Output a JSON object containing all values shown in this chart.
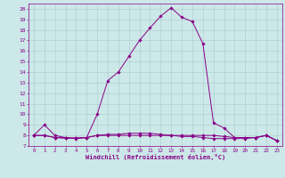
{
  "xlabel": "Windchill (Refroidissement éolien,°C)",
  "bg_color": "#cce8e8",
  "line_color": "#880088",
  "grid_color": "#aacccc",
  "xlim": [
    -0.5,
    23.5
  ],
  "ylim": [
    7,
    20.5
  ],
  "xticks": [
    0,
    1,
    2,
    3,
    4,
    5,
    6,
    7,
    8,
    9,
    10,
    11,
    12,
    13,
    14,
    15,
    16,
    17,
    18,
    19,
    20,
    21,
    22,
    23
  ],
  "yticks": [
    7,
    8,
    9,
    10,
    11,
    12,
    13,
    14,
    15,
    16,
    17,
    18,
    19,
    20
  ],
  "curve1_x": [
    0,
    1,
    2,
    3,
    4,
    5,
    6,
    7,
    8,
    9,
    10,
    11,
    12,
    13,
    14,
    15,
    16,
    17,
    18,
    19,
    20,
    21,
    22,
    23
  ],
  "curve1_y": [
    8.0,
    9.0,
    8.0,
    7.8,
    7.7,
    7.8,
    10.0,
    13.2,
    14.0,
    15.5,
    17.0,
    18.2,
    19.3,
    20.1,
    19.2,
    18.8,
    16.7,
    9.2,
    8.7,
    7.8,
    7.8,
    7.8,
    8.0,
    7.5
  ],
  "curve2_x": [
    0,
    1,
    2,
    3,
    4,
    5,
    6,
    7,
    8,
    9,
    10,
    11,
    12,
    13,
    14,
    15,
    16,
    17,
    18,
    19,
    20,
    21,
    22,
    23
  ],
  "curve2_y": [
    8.0,
    8.0,
    7.8,
    7.75,
    7.75,
    7.8,
    8.0,
    8.0,
    8.0,
    8.0,
    8.0,
    8.0,
    8.0,
    8.0,
    8.0,
    8.0,
    8.0,
    8.0,
    7.9,
    7.8,
    7.8,
    7.8,
    8.0,
    7.5
  ],
  "curve3_x": [
    0,
    1,
    2,
    3,
    4,
    5,
    6,
    7,
    8,
    9,
    10,
    11,
    12,
    13,
    14,
    15,
    16,
    17,
    18,
    19,
    20,
    21,
    22,
    23
  ],
  "curve3_y": [
    8.0,
    8.0,
    7.8,
    7.75,
    7.75,
    7.8,
    8.0,
    8.1,
    8.1,
    8.2,
    8.2,
    8.2,
    8.1,
    8.0,
    7.9,
    7.9,
    7.8,
    7.7,
    7.7,
    7.7,
    7.7,
    7.8,
    8.0,
    7.5
  ]
}
